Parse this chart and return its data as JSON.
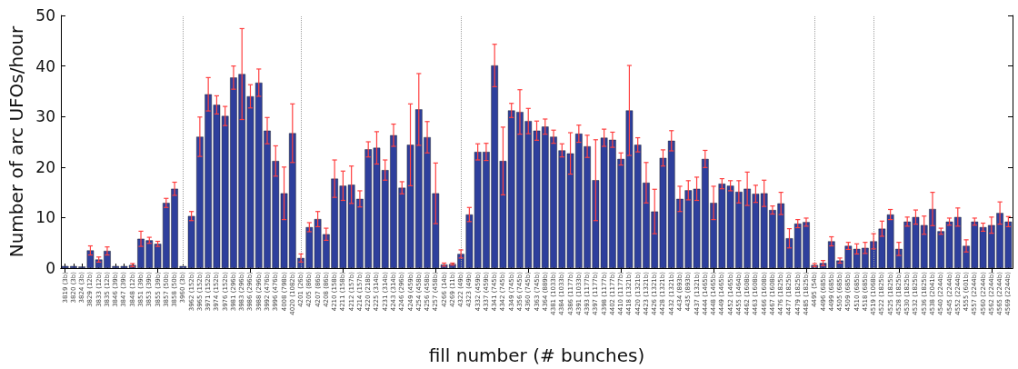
{
  "chart_data": {
    "type": "bar",
    "xlabel": "fill number (# bunches)",
    "ylabel": "Number of arc UFOs/hour",
    "categories": [
      "3819 (3b)",
      "3820 (3b)",
      "3824 (3b)",
      "3829 (12b)",
      "3833 (12b)",
      "3835 (12b)",
      "3846 (39b)",
      "3847 (39b)",
      "3848 (12b)",
      "3851 (39b)",
      "3853 (39b)",
      "3855 (39b)",
      "3857 (50b)",
      "3858 (50b)",
      "3960 (3b)",
      "3962 (152b)",
      "3965 (152b)",
      "3971 (152b)",
      "3974 (152b)",
      "3976 (152b)",
      "3981 (296b)",
      "3983 (296b)",
      "3986 (296b)",
      "3988 (296b)",
      "3992 (476b)",
      "3996 (476b)",
      "4008 (798b)",
      "4020 (1082b)",
      "4201 (26b)",
      "4205 (86b)",
      "4207 (86b)",
      "4208 (86b)",
      "4210 (158b)",
      "4211 (158b)",
      "4212 (157b)",
      "4214 (157b)",
      "4220 (218b)",
      "4225 (314b)",
      "4231 (314b)",
      "4243 (314b)",
      "4246 (296b)",
      "4249 (459b)",
      "4254 (458b)",
      "4256 (458b)",
      "4257 (458b)",
      "4266 (14b)",
      "4269 (11b)",
      "4322 (49b)",
      "4323 (49b)",
      "4332 (459b)",
      "4337 (459b)",
      "4341 (745b)",
      "4342 (745b)",
      "4349 (745b)",
      "4356 (745b)",
      "4360 (745b)",
      "4363 (745b)",
      "4364 (889b)",
      "4381 (1033b)",
      "4384 (1033b)",
      "4386 (1177b)",
      "4391 (1033b)",
      "4393 (1177b)",
      "4397 (1177b)",
      "4398 (1177b)",
      "4402 (1177b)",
      "4410 (1177b)",
      "4418 (1321b)",
      "4420 (1321b)",
      "4423 (1321b)",
      "4426 (1321b)",
      "4428 (1321b)",
      "4432 (1321b)",
      "4434 (893b)",
      "4435 (893b)",
      "4437 (1321b)",
      "4444 (1465b)",
      "4448 (1465b)",
      "4449 (1465b)",
      "4452 (1465b)",
      "4455 (1464b)",
      "4462 (1608b)",
      "4463 (1608b)",
      "4466 (1608b)",
      "4467 (1608b)",
      "4476 (1825b)",
      "4477 (1825b)",
      "4479 (1825b)",
      "4485 (1825b)",
      "4495 (54b)",
      "4496 (685b)",
      "4499 (685b)",
      "4505 (685b)",
      "4509 (685b)",
      "4510 (685b)",
      "4518 (685b)",
      "4519 (1068b)",
      "4522 (1825b)",
      "4525 (1825b)",
      "4528 (1825b)",
      "4530 (1825b)",
      "4532 (1825b)",
      "4536 (1825b)",
      "4538 (2041b)",
      "4540 (2244b)",
      "4545 (2244b)",
      "4552 (2244b)",
      "4555 (601b)",
      "4557 (2244b)",
      "4560 (2244b)",
      "4562 (2244b)",
      "4565 (2244b)",
      "4569 (2244b)"
    ],
    "values": [
      0.4,
      0.4,
      0.3,
      3.5,
      1.7,
      3.4,
      0.4,
      0.4,
      0.6,
      5.8,
      5.5,
      4.8,
      12.9,
      15.7,
      0.4,
      10.3,
      26.0,
      34.4,
      32.3,
      30.1,
      37.7,
      38.4,
      34.0,
      36.7,
      27.2,
      21.2,
      14.8,
      26.7,
      2.0,
      8.1,
      9.7,
      6.7,
      17.7,
      16.3,
      16.5,
      13.7,
      23.5,
      23.8,
      19.4,
      26.3,
      15.9,
      24.4,
      31.4,
      25.9,
      14.8,
      0.7,
      0.8,
      2.8,
      10.6,
      23.0,
      23.0,
      40.1,
      21.2,
      31.2,
      30.9,
      29.1,
      27.2,
      28.0,
      26.0,
      23.3,
      22.7,
      26.6,
      24.1,
      17.4,
      25.8,
      25.4,
      21.6,
      31.2,
      24.4,
      16.9,
      11.2,
      21.8,
      25.2,
      13.7,
      15.4,
      15.7,
      21.6,
      12.9,
      16.7,
      16.3,
      15.1,
      15.7,
      14.7,
      14.8,
      11.5,
      12.8,
      5.9,
      8.8,
      9.1,
      0.6,
      1.0,
      5.3,
      1.5,
      4.4,
      3.8,
      4.0,
      5.3,
      7.8,
      10.6,
      3.8,
      9.2,
      10.1,
      8.5,
      11.7,
      7.3,
      9.2,
      10.1,
      4.4,
      9.2,
      8.1,
      8.5,
      10.9,
      9.2
    ],
    "errors": [
      null,
      null,
      null,
      0.9,
      0.5,
      0.8,
      null,
      null,
      0.3,
      1.5,
      0.6,
      0.5,
      0.9,
      1.3,
      null,
      0.9,
      3.9,
      3.3,
      1.8,
      1.9,
      2.3,
      9.0,
      2.3,
      2.7,
      2.6,
      3.0,
      5.2,
      5.8,
      0.8,
      0.9,
      1.5,
      1.2,
      3.7,
      2.9,
      3.7,
      1.6,
      1.5,
      3.2,
      2.0,
      2.2,
      1.2,
      8.1,
      7.1,
      3.1,
      6.0,
      0.3,
      0.2,
      0.8,
      1.4,
      1.6,
      1.7,
      4.2,
      6.7,
      1.4,
      4.4,
      2.5,
      1.9,
      1.5,
      1.3,
      1.3,
      4.1,
      1.7,
      2.2,
      8.0,
      1.7,
      1.5,
      1.2,
      8.9,
      1.4,
      4.0,
      4.4,
      1.6,
      2.0,
      2.5,
      1.9,
      2.3,
      1.7,
      3.3,
      1.0,
      1.0,
      2.2,
      3.3,
      1.7,
      2.6,
      0.8,
      2.2,
      1.9,
      0.8,
      0.8,
      0.3,
      0.5,
      0.9,
      0.5,
      0.7,
      1.0,
      1.1,
      1.5,
      1.5,
      1.0,
      1.3,
      0.9,
      1.4,
      1.8,
      3.3,
      0.6,
      0.7,
      1.8,
      1.2,
      0.7,
      0.8,
      1.6,
      2.2,
      1.0
    ],
    "color": "#2e3f9c",
    "ylim": [
      0,
      50
    ],
    "yticks": [
      0,
      10,
      20,
      30,
      40,
      50
    ],
    "grid": false,
    "legend": false,
    "ref_lines": [
      {
        "axis": "x",
        "value": "3960 (3b)",
        "color": "#a0a0a0",
        "line_style": "dotted"
      },
      {
        "axis": "x",
        "value": "4201 (26b)",
        "color": "#a0a0a0",
        "line_style": "dotted"
      },
      {
        "axis": "x",
        "value": "4322 (49b)",
        "color": "#a0a0a0",
        "line_style": "dotted"
      },
      {
        "axis": "x",
        "value": "4495 (54b)",
        "color": "#a0a0a0",
        "line_style": "dotted"
      },
      {
        "axis": "x",
        "value": "4519 (1068b)",
        "color": "#a0a0a0",
        "line_style": "dotted"
      }
    ]
  }
}
